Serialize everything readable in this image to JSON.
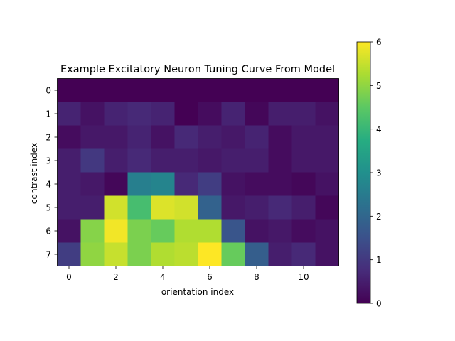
{
  "chart_data": {
    "type": "heatmap",
    "title": "Example Excitatory Neuron Tuning Curve From Model",
    "xlabel": "orientation index",
    "ylabel": "contrast index",
    "x_ticks": [
      0,
      2,
      4,
      6,
      8,
      10
    ],
    "y_ticks": [
      0,
      1,
      2,
      3,
      4,
      5,
      6,
      7
    ],
    "colorbar_ticks": [
      0,
      1,
      2,
      3,
      4,
      5,
      6
    ],
    "colormap": "viridis",
    "vmin": 0,
    "vmax": 6,
    "n_cols": 12,
    "n_rows": 8,
    "values": [
      [
        0.0,
        0.0,
        0.0,
        0.0,
        0.0,
        0.0,
        0.0,
        0.0,
        0.0,
        0.0,
        0.0,
        0.0
      ],
      [
        0.6,
        0.3,
        0.6,
        0.7,
        0.6,
        0.0,
        0.2,
        0.6,
        0.1,
        0.5,
        0.5,
        0.3
      ],
      [
        0.2,
        0.4,
        0.4,
        0.6,
        0.3,
        0.7,
        0.5,
        0.4,
        0.6,
        0.2,
        0.4,
        0.4
      ],
      [
        0.5,
        1.0,
        0.5,
        0.7,
        0.5,
        0.5,
        0.4,
        0.5,
        0.5,
        0.2,
        0.4,
        0.4
      ],
      [
        0.5,
        0.4,
        0.1,
        2.6,
        2.7,
        0.7,
        1.1,
        0.3,
        0.2,
        0.2,
        0.1,
        0.3
      ],
      [
        0.5,
        0.5,
        5.6,
        4.2,
        5.7,
        5.6,
        1.9,
        0.4,
        0.5,
        0.7,
        0.5,
        0.1
      ],
      [
        0.3,
        4.9,
        5.9,
        4.8,
        4.6,
        5.3,
        5.3,
        1.6,
        0.3,
        0.4,
        0.2,
        0.3
      ],
      [
        1.1,
        5.0,
        5.5,
        4.8,
        5.3,
        5.4,
        6.0,
        4.6,
        1.8,
        0.5,
        0.7,
        0.3
      ]
    ]
  }
}
